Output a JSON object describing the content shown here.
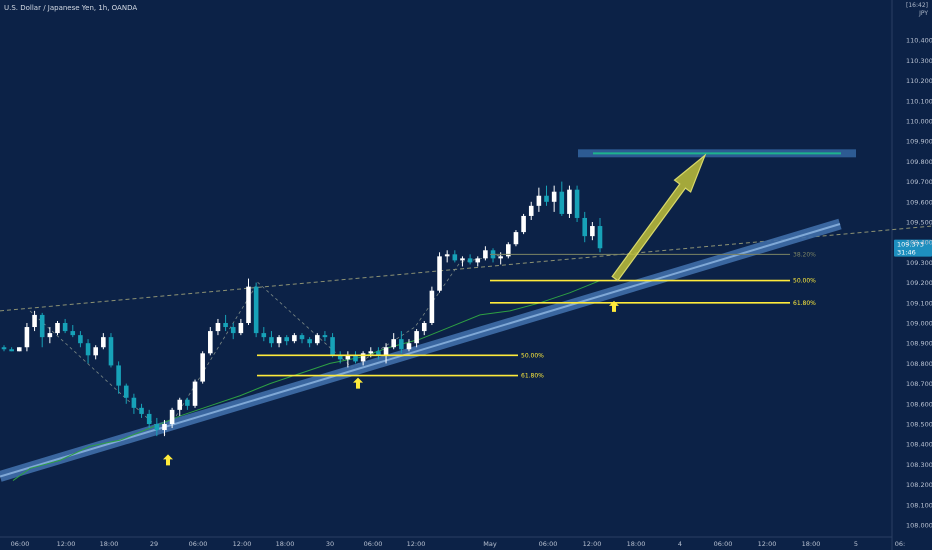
{
  "header": {
    "title": "U.S. Dollar / Japanese Yen, 1h, OANDA",
    "corner_top": "[16:42]",
    "corner_bottom": "JPY"
  },
  "price_badge": {
    "price": "109.373",
    "countdown": "31:46"
  },
  "colors": {
    "background": "#0c2247",
    "bull": "#ffffff",
    "bear": "#17a2b8",
    "trendline": "#3f6ea9",
    "fib": "#ffeb3b",
    "target": "#1eb38d",
    "moving_average": "#2ea043",
    "arrow": "#bfbf3a"
  },
  "chart_data": {
    "type": "candlestick",
    "y_range": [
      108.0,
      110.5
    ],
    "y_ticks": [
      "110.400",
      "110.300",
      "110.200",
      "110.100",
      "110.000",
      "109.900",
      "109.800",
      "109.700",
      "109.600",
      "109.500",
      "109.400",
      "109.300",
      "109.200",
      "109.100",
      "109.000",
      "108.900",
      "108.800",
      "108.700",
      "108.600",
      "108.500",
      "108.400",
      "108.300",
      "108.200",
      "108.100",
      "108.000"
    ],
    "x_ticks": [
      "06:00",
      "12:00",
      "18:00",
      "29",
      "06:00",
      "12:00",
      "18:00",
      "30",
      "06:00",
      "12:00",
      "May",
      "06:00",
      "12:00",
      "18:00",
      "4",
      "06:00",
      "12:00",
      "18:00",
      "5",
      "06:"
    ],
    "ohlc": [
      [
        108.88,
        108.89,
        108.86,
        108.87
      ],
      [
        108.87,
        108.88,
        108.86,
        108.86
      ],
      [
        108.86,
        108.88,
        108.86,
        108.88
      ],
      [
        108.88,
        109.0,
        108.86,
        108.98
      ],
      [
        108.98,
        109.06,
        108.96,
        109.04
      ],
      [
        109.04,
        109.05,
        108.88,
        108.93
      ],
      [
        108.93,
        108.98,
        108.9,
        108.95
      ],
      [
        108.95,
        109.01,
        108.94,
        109.0
      ],
      [
        109.0,
        109.02,
        108.95,
        108.96
      ],
      [
        108.96,
        108.99,
        108.93,
        108.94
      ],
      [
        108.94,
        108.96,
        108.88,
        108.9
      ],
      [
        108.9,
        108.92,
        108.8,
        108.84
      ],
      [
        108.84,
        108.89,
        108.82,
        108.88
      ],
      [
        108.88,
        108.95,
        108.87,
        108.93
      ],
      [
        108.93,
        108.95,
        108.78,
        108.79
      ],
      [
        108.79,
        108.81,
        108.65,
        108.69
      ],
      [
        108.69,
        108.7,
        108.6,
        108.63
      ],
      [
        108.63,
        108.65,
        108.55,
        108.58
      ],
      [
        108.58,
        108.6,
        108.53,
        108.55
      ],
      [
        108.55,
        108.57,
        108.48,
        108.5
      ],
      [
        108.5,
        108.53,
        108.44,
        108.47
      ],
      [
        108.47,
        108.52,
        108.44,
        108.5
      ],
      [
        108.5,
        108.58,
        108.48,
        108.57
      ],
      [
        108.57,
        108.63,
        108.54,
        108.62
      ],
      [
        108.62,
        108.63,
        108.57,
        108.59
      ],
      [
        108.59,
        108.72,
        108.58,
        108.71
      ],
      [
        108.71,
        108.86,
        108.7,
        108.85
      ],
      [
        108.85,
        108.98,
        108.84,
        108.96
      ],
      [
        108.96,
        109.02,
        108.94,
        109.0
      ],
      [
        109.0,
        109.04,
        108.96,
        108.98
      ],
      [
        108.98,
        109.0,
        108.92,
        108.95
      ],
      [
        108.95,
        109.02,
        108.94,
        109.0
      ],
      [
        109.0,
        109.22,
        108.99,
        109.18
      ],
      [
        109.18,
        109.2,
        108.93,
        108.95
      ],
      [
        108.95,
        108.98,
        108.91,
        108.93
      ],
      [
        108.93,
        108.96,
        108.88,
        108.9
      ],
      [
        108.9,
        108.94,
        108.88,
        108.93
      ],
      [
        108.93,
        108.94,
        108.89,
        108.91
      ],
      [
        108.91,
        108.95,
        108.9,
        108.94
      ],
      [
        108.94,
        108.95,
        108.9,
        108.92
      ],
      [
        108.92,
        108.93,
        108.88,
        108.9
      ],
      [
        108.9,
        108.95,
        108.89,
        108.94
      ],
      [
        108.94,
        108.96,
        108.91,
        108.93
      ],
      [
        108.93,
        108.95,
        108.83,
        108.84
      ],
      [
        108.84,
        108.86,
        108.8,
        108.82
      ],
      [
        108.82,
        108.86,
        108.78,
        108.84
      ],
      [
        108.84,
        108.86,
        108.8,
        108.81
      ],
      [
        108.81,
        108.86,
        108.79,
        108.85
      ],
      [
        108.85,
        108.88,
        108.83,
        108.86
      ],
      [
        108.86,
        108.88,
        108.82,
        108.84
      ],
      [
        108.84,
        108.9,
        108.8,
        108.88
      ],
      [
        108.88,
        108.95,
        108.87,
        108.92
      ],
      [
        108.92,
        108.96,
        108.85,
        108.87
      ],
      [
        108.87,
        108.92,
        108.86,
        108.9
      ],
      [
        108.9,
        108.97,
        108.88,
        108.96
      ],
      [
        108.96,
        109.01,
        108.94,
        109.0
      ],
      [
        109.0,
        109.18,
        108.99,
        109.16
      ],
      [
        109.16,
        109.35,
        109.15,
        109.33
      ],
      [
        109.33,
        109.36,
        109.3,
        109.34
      ],
      [
        109.34,
        109.36,
        109.3,
        109.31
      ],
      [
        109.31,
        109.33,
        109.28,
        109.32
      ],
      [
        109.32,
        109.34,
        109.29,
        109.3
      ],
      [
        109.3,
        109.33,
        109.28,
        109.32
      ],
      [
        109.32,
        109.38,
        109.31,
        109.36
      ],
      [
        109.36,
        109.37,
        109.3,
        109.32
      ],
      [
        109.32,
        109.35,
        109.29,
        109.33
      ],
      [
        109.33,
        109.4,
        109.32,
        109.39
      ],
      [
        109.39,
        109.46,
        109.38,
        109.45
      ],
      [
        109.45,
        109.54,
        109.44,
        109.53
      ],
      [
        109.53,
        109.6,
        109.51,
        109.58
      ],
      [
        109.58,
        109.67,
        109.55,
        109.63
      ],
      [
        109.63,
        109.68,
        109.58,
        109.6
      ],
      [
        109.6,
        109.68,
        109.55,
        109.65
      ],
      [
        109.65,
        109.7,
        109.53,
        109.54
      ],
      [
        109.54,
        109.68,
        109.52,
        109.66
      ],
      [
        109.66,
        109.68,
        109.5,
        109.52
      ],
      [
        109.52,
        109.55,
        109.4,
        109.43
      ],
      [
        109.43,
        109.5,
        109.41,
        109.48
      ],
      [
        109.48,
        109.52,
        109.35,
        109.37
      ]
    ],
    "moving_average": [
      [
        13,
        108.22
      ],
      [
        30,
        108.28
      ],
      [
        60,
        108.32
      ],
      [
        90,
        108.39
      ],
      [
        120,
        108.42
      ],
      [
        150,
        108.48
      ],
      [
        180,
        108.54
      ],
      [
        210,
        108.59
      ],
      [
        240,
        108.64
      ],
      [
        270,
        108.7
      ],
      [
        300,
        108.75
      ],
      [
        330,
        108.8
      ],
      [
        360,
        108.83
      ],
      [
        390,
        108.88
      ],
      [
        420,
        108.92
      ],
      [
        450,
        108.98
      ],
      [
        480,
        109.04
      ],
      [
        510,
        109.06
      ],
      [
        540,
        109.1
      ],
      [
        570,
        109.15
      ],
      [
        600,
        109.21
      ]
    ],
    "annotations": {
      "trendline": [
        [
          0,
          108.24
        ],
        [
          840,
          109.49
        ]
      ],
      "dashed_resistance": [
        [
          0,
          109.06
        ],
        [
          932,
          109.48
        ]
      ],
      "fib_left": [
        {
          "label": "50.00%",
          "value": 108.84,
          "x_start": 257,
          "x_end": 518
        },
        {
          "label": "61.80%",
          "value": 108.74,
          "x_start": 257,
          "x_end": 518
        }
      ],
      "fib_right": [
        {
          "label": "38.20%",
          "value": 109.34,
          "x_start": 490,
          "x_end": 790,
          "faded": true
        },
        {
          "label": "50.00%",
          "value": 109.21,
          "x_start": 490,
          "x_end": 790
        },
        {
          "label": "61.80%",
          "value": 109.1,
          "x_start": 490,
          "x_end": 790
        }
      ],
      "target_zone": {
        "value": 109.84,
        "x_start": 578,
        "x_end": 856
      },
      "up_arrows": [
        {
          "x": 168,
          "value": 108.32
        },
        {
          "x": 358,
          "value": 108.7
        },
        {
          "x": 614,
          "value": 109.08
        }
      ],
      "projection_arrow": {
        "from": [
          615,
          109.22
        ],
        "to": [
          705,
          109.83
        ]
      }
    }
  }
}
